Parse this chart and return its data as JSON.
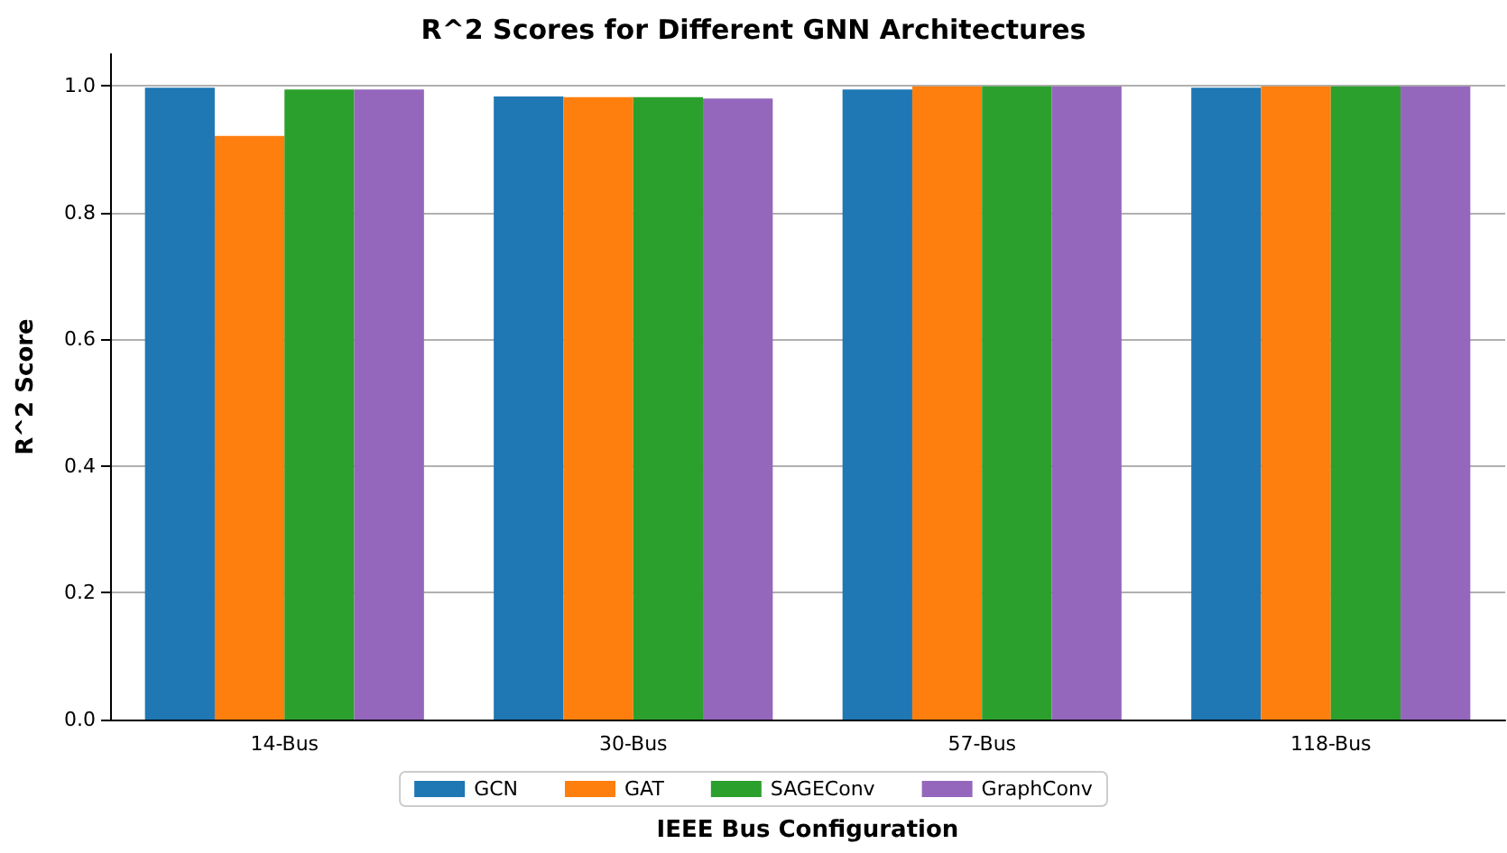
{
  "chart_data": {
    "type": "bar",
    "title": "R^2 Scores for Different GNN Architectures",
    "xlabel": "IEEE Bus Configuration",
    "ylabel": "R^2 Score",
    "categories": [
      "14-Bus",
      "30-Bus",
      "57-Bus",
      "118-Bus"
    ],
    "series": [
      {
        "name": "GCN",
        "color": "#1f77b4",
        "values": [
          0.997,
          0.983,
          0.994,
          0.997
        ]
      },
      {
        "name": "GAT",
        "color": "#ff7f0e",
        "values": [
          0.921,
          0.982,
          0.999,
          0.999
        ]
      },
      {
        "name": "SAGEConv",
        "color": "#2ca02c",
        "values": [
          0.994,
          0.982,
          0.999,
          0.999
        ]
      },
      {
        "name": "GraphConv",
        "color": "#9467bd",
        "values": [
          0.994,
          0.98,
          0.999,
          0.999
        ]
      }
    ],
    "ylim": [
      0,
      1.05
    ],
    "yticks": [
      {
        "value": 0,
        "label": "0.0"
      },
      {
        "value": 0.2,
        "label": "0.2"
      },
      {
        "value": 0.4,
        "label": "0.4"
      },
      {
        "value": 0.6,
        "label": "0.6"
      },
      {
        "value": 0.8,
        "label": "0.8"
      },
      {
        "value": 1,
        "label": "1.0"
      }
    ],
    "grid": "y",
    "legend": "bottom"
  }
}
